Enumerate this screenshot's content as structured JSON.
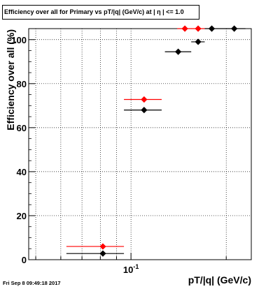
{
  "chart_data": {
    "type": "scatter",
    "title": "Efficiency over all for Primary vs pT/|q| (GeV/c) at | η | <= 1.0",
    "xlabel": "pT/|q| (GeV/c)",
    "ylabel": "Efficiency over all (%)",
    "xscale": "log",
    "xlim": [
      0.0475,
      0.24
    ],
    "ylim": [
      0,
      105
    ],
    "x_tick_labels": [
      "10^-1"
    ],
    "y_tick_labels": [
      "0",
      "20",
      "40",
      "60",
      "80",
      "100"
    ],
    "grid": true,
    "legend": "none",
    "series": [
      {
        "color": "#000000",
        "points": [
          {
            "x": 0.0815,
            "y": 2.8,
            "xerr_low": 0.0625,
            "xerr_high": 0.095
          },
          {
            "x": 0.11,
            "y": 68.0,
            "xerr_low": 0.095,
            "xerr_high": 0.125
          },
          {
            "x": 0.141,
            "y": 94.5,
            "xerr_low": 0.128,
            "xerr_high": 0.155
          },
          {
            "x": 0.163,
            "y": 99.0,
            "xerr_low": 0.155,
            "xerr_high": 0.171
          },
          {
            "x": 0.18,
            "y": 105.0,
            "xerr_low": 0.171,
            "xerr_high": 0.19
          },
          {
            "x": 0.212,
            "y": 105.0,
            "xerr_low": 0.19,
            "xerr_high": 0.23
          }
        ]
      },
      {
        "color": "#ff0000",
        "points": [
          {
            "x": 0.0815,
            "y": 6.0,
            "xerr_low": 0.0625,
            "xerr_high": 0.095
          },
          {
            "x": 0.11,
            "y": 72.8,
            "xerr_low": 0.095,
            "xerr_high": 0.125
          },
          {
            "x": 0.148,
            "y": 105.0,
            "xerr_low": 0.14,
            "xerr_high": 0.155
          },
          {
            "x": 0.163,
            "y": 105.0,
            "xerr_low": 0.155,
            "xerr_high": 0.171
          }
        ]
      }
    ]
  },
  "footer": {
    "timestamp": "Fri Sep  8 09:49:18 2017"
  }
}
